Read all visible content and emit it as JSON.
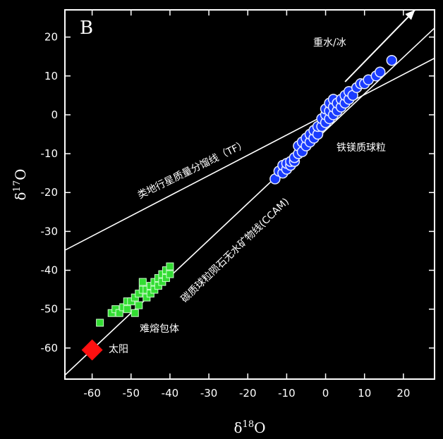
{
  "chart_data": {
    "type": "scatter",
    "panel_label": "B",
    "xlabel": "δ18O",
    "ylabel": "δ17O",
    "xlim": [
      -67,
      28
    ],
    "ylim": [
      -68,
      27
    ],
    "x_ticks": [
      -60,
      -50,
      -40,
      -30,
      -20,
      -10,
      0,
      10,
      20
    ],
    "y_ticks": [
      -60,
      -50,
      -40,
      -30,
      -20,
      -10,
      0,
      10,
      20
    ],
    "colors": {
      "background": "#000000",
      "axes": "#ffffff",
      "refractory": "#33dd33",
      "chondrules": "#1a3cff",
      "sun": "#ff1010"
    },
    "lines": [
      {
        "label": "类地行星质量分馏线（TF）",
        "slope": 0.52,
        "intercept": 0
      },
      {
        "label": "碳质球粒陨石无水矿物线(CCAM)",
        "slope": 0.94,
        "intercept": -4
      }
    ],
    "arrow": {
      "label": "重水/冰",
      "from": [
        5,
        8.5
      ],
      "to": [
        23,
        27
      ]
    },
    "series": [
      {
        "name": "难熔包体",
        "marker": "square",
        "points": [
          [
            -58,
            -53.5
          ],
          [
            -55,
            -51
          ],
          [
            -54,
            -50
          ],
          [
            -53,
            -51
          ],
          [
            -52,
            -49.5
          ],
          [
            -51,
            -50
          ],
          [
            -51,
            -48
          ],
          [
            -50,
            -48
          ],
          [
            -49,
            -47
          ],
          [
            -49,
            -51
          ],
          [
            -48,
            -46
          ],
          [
            -48,
            -49
          ],
          [
            -47,
            -45
          ],
          [
            -47,
            -43
          ],
          [
            -46,
            -47
          ],
          [
            -46,
            -45
          ],
          [
            -45,
            -46
          ],
          [
            -45,
            -44
          ],
          [
            -44,
            -45
          ],
          [
            -44,
            -43
          ],
          [
            -43,
            -44
          ],
          [
            -43,
            -42
          ],
          [
            -42,
            -43
          ],
          [
            -42,
            -41
          ],
          [
            -41,
            -42
          ],
          [
            -41,
            -40
          ],
          [
            -40,
            -41
          ],
          [
            -40,
            -39
          ]
        ]
      },
      {
        "name": "铁镁质球粒",
        "marker": "circle",
        "points": [
          [
            -13,
            -16.5
          ],
          [
            -12,
            -14.5
          ],
          [
            -11,
            -15
          ],
          [
            -11,
            -13
          ],
          [
            -10,
            -14
          ],
          [
            -10,
            -12.5
          ],
          [
            -9,
            -13
          ],
          [
            -9,
            -12
          ],
          [
            -8,
            -12
          ],
          [
            -8,
            -11
          ],
          [
            -7,
            -10
          ],
          [
            -7,
            -8
          ],
          [
            -6,
            -9.5
          ],
          [
            -6,
            -7
          ],
          [
            -5,
            -8
          ],
          [
            -5,
            -6
          ],
          [
            -4,
            -7
          ],
          [
            -4,
            -5
          ],
          [
            -3,
            -6
          ],
          [
            -3,
            -4
          ],
          [
            -2,
            -5
          ],
          [
            -2,
            -3
          ],
          [
            -1,
            -3
          ],
          [
            -1,
            -1
          ],
          [
            0,
            -2
          ],
          [
            0,
            0
          ],
          [
            0,
            1.5
          ],
          [
            1,
            -1
          ],
          [
            1,
            1
          ],
          [
            1,
            3
          ],
          [
            2,
            0
          ],
          [
            2,
            2
          ],
          [
            2,
            4
          ],
          [
            3,
            1
          ],
          [
            3,
            3
          ],
          [
            4,
            2
          ],
          [
            4,
            4
          ],
          [
            5,
            3
          ],
          [
            5,
            5
          ],
          [
            6,
            4
          ],
          [
            6,
            6
          ],
          [
            7,
            5
          ],
          [
            8,
            7
          ],
          [
            9,
            8
          ],
          [
            10,
            8
          ],
          [
            11,
            9
          ],
          [
            13,
            10
          ],
          [
            14,
            11
          ],
          [
            17,
            14
          ]
        ]
      },
      {
        "name": "太阳",
        "marker": "diamond",
        "points": [
          [
            -60,
            -60.5
          ]
        ]
      }
    ]
  }
}
